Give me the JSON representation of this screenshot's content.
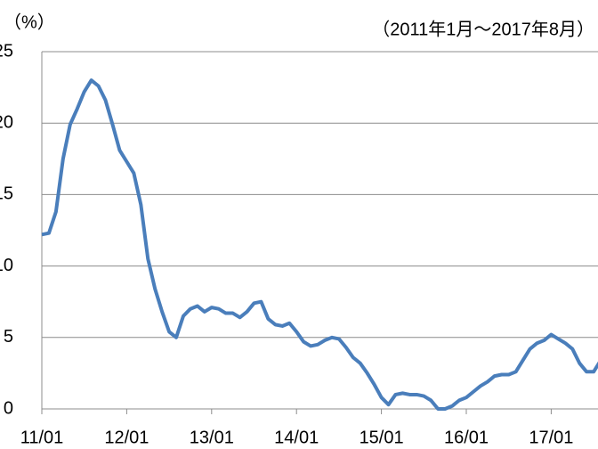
{
  "chart_data": {
    "type": "line",
    "unit_label": "（%）",
    "subtitle": "（2011年1月～2017年8月）",
    "categories": [
      "11/01",
      null,
      null,
      null,
      null,
      null,
      null,
      null,
      null,
      null,
      null,
      null,
      "12/01",
      null,
      null,
      null,
      null,
      null,
      null,
      null,
      null,
      null,
      null,
      null,
      "13/01",
      null,
      null,
      null,
      null,
      null,
      null,
      null,
      null,
      null,
      null,
      null,
      "14/01",
      null,
      null,
      null,
      null,
      null,
      null,
      null,
      null,
      null,
      null,
      null,
      "15/01",
      null,
      null,
      null,
      null,
      null,
      null,
      null,
      null,
      null,
      null,
      null,
      "16/01",
      null,
      null,
      null,
      null,
      null,
      null,
      null,
      null,
      null,
      null,
      null,
      "17/01",
      null,
      null,
      null,
      null,
      null,
      null,
      null
    ],
    "series": [
      {
        "color": "#4a7ebb",
        "values": [
          12.2,
          12.3,
          13.8,
          17.5,
          19.9,
          21.0,
          22.2,
          23.0,
          22.6,
          21.6,
          19.9,
          18.1,
          17.3,
          16.5,
          14.3,
          10.5,
          8.4,
          6.8,
          5.4,
          5.0,
          6.5,
          7.0,
          7.2,
          6.8,
          7.1,
          7.0,
          6.7,
          6.7,
          6.4,
          6.8,
          7.4,
          7.5,
          6.3,
          5.9,
          5.8,
          6.0,
          5.4,
          4.7,
          4.4,
          4.5,
          4.8,
          5.0,
          4.9,
          4.3,
          3.6,
          3.2,
          2.5,
          1.7,
          0.8,
          0.3,
          1.0,
          1.1,
          1.0,
          1.0,
          0.9,
          0.6,
          0.0,
          0.0,
          0.2,
          0.6,
          0.8,
          1.2,
          1.6,
          1.9,
          2.3,
          2.4,
          2.4,
          2.6,
          3.4,
          4.2,
          4.6,
          4.8,
          5.2,
          4.9,
          4.6,
          4.2,
          3.2,
          2.6,
          2.6,
          3.4
        ]
      }
    ],
    "ylim": [
      0,
      25
    ],
    "yticks": [
      0,
      5,
      10,
      15,
      20,
      25
    ],
    "grid": true
  }
}
